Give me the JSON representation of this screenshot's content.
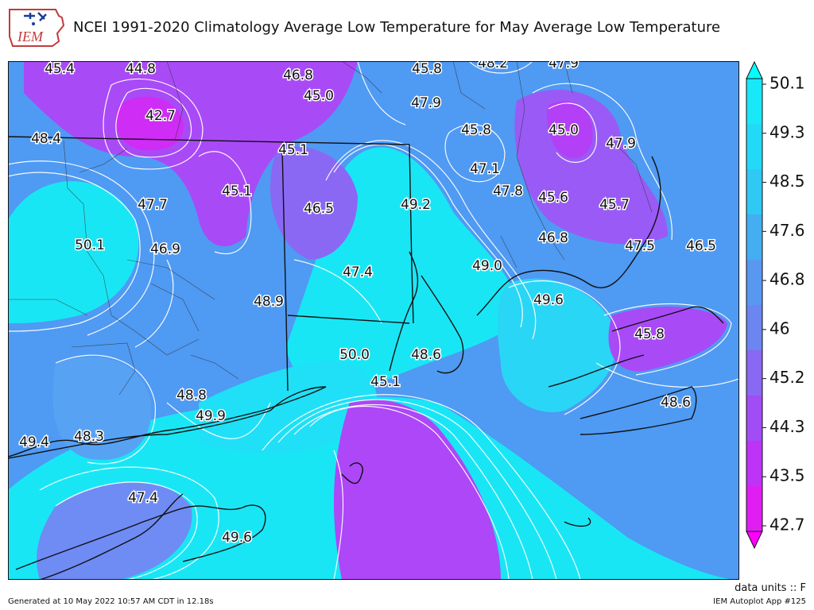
{
  "header": {
    "title": "NCEI 1991-2020 Climatology Average Low Temperature for May Average Low Temperature",
    "logo_text": "IEM"
  },
  "colors": {
    "magenta": "#ee11ee",
    "purple": "#a94af7",
    "blue": "#6b8df6",
    "mid_blue": "#4d9df2",
    "cyan": "#19e6f5",
    "light_cyan": "#3bcbf0"
  },
  "colorbar": {
    "ticks": [
      "50.1",
      "49.3",
      "48.5",
      "47.6",
      "46.8",
      "46",
      "45.2",
      "44.3",
      "43.5",
      "42.7"
    ],
    "colors": [
      "#18e8f7",
      "#22daf7",
      "#30c8f4",
      "#44aef2",
      "#5898f1",
      "#6b85f1",
      "#8968f3",
      "#a24cf6",
      "#bd34f6",
      "#e01ef4"
    ]
  },
  "map_labels": [
    {
      "text": "45.4"
    },
    {
      "text": "44.8"
    },
    {
      "text": "46.8"
    },
    {
      "text": "45.8"
    },
    {
      "text": "48.2"
    },
    {
      "text": "47.9"
    },
    {
      "text": "45.0"
    },
    {
      "text": "47.9"
    },
    {
      "text": "42.7"
    },
    {
      "text": "45.8"
    },
    {
      "text": "45.0"
    },
    {
      "text": "48.4"
    },
    {
      "text": "45.1"
    },
    {
      "text": "47.9"
    },
    {
      "text": "47.1"
    },
    {
      "text": "47.7"
    },
    {
      "text": "45.1"
    },
    {
      "text": "46.5"
    },
    {
      "text": "49.2"
    },
    {
      "text": "47.8"
    },
    {
      "text": "45.6"
    },
    {
      "text": "45.7"
    },
    {
      "text": "50.1"
    },
    {
      "text": "46.9"
    },
    {
      "text": "46.8"
    },
    {
      "text": "47.5"
    },
    {
      "text": "46.5"
    },
    {
      "text": "47.4"
    },
    {
      "text": "49.0"
    },
    {
      "text": "48.9"
    },
    {
      "text": "49.6"
    },
    {
      "text": "45.8"
    },
    {
      "text": "50.0"
    },
    {
      "text": "48.6"
    },
    {
      "text": "45.1"
    },
    {
      "text": "48.8"
    },
    {
      "text": "48.6"
    },
    {
      "text": "49.9"
    },
    {
      "text": "49.4"
    },
    {
      "text": "48.3"
    },
    {
      "text": "47.4"
    },
    {
      "text": "49.6"
    }
  ],
  "footer": {
    "units": "data units :: F",
    "generated": "Generated at 10 May 2022 10:57 AM CDT in 12.18s",
    "app": "IEM Autoplot App #125"
  }
}
